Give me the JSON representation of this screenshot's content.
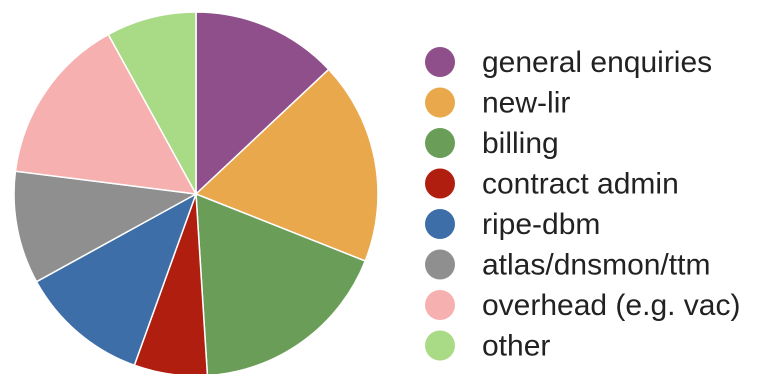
{
  "chart_data": {
    "type": "pie",
    "start": "12 o'clock",
    "direction": "clockwise",
    "legend_position": "right",
    "slices": [
      {
        "label": "general enquiries",
        "value": 13,
        "color": "#8E4F8A"
      },
      {
        "label": "new-lir",
        "value": 18,
        "color": "#E9A84C"
      },
      {
        "label": "billing",
        "value": 18,
        "color": "#6A9E58"
      },
      {
        "label": "contract admin",
        "value": 6.5,
        "color": "#B01E10"
      },
      {
        "label": "ripe-dbm",
        "value": 11.5,
        "color": "#3E6EA7"
      },
      {
        "label": "atlas/dnsmon/ttm",
        "value": 10,
        "color": "#8F8F8F"
      },
      {
        "label": "overhead (e.g. vac)",
        "value": 15,
        "color": "#F7B0B0"
      },
      {
        "label": "other",
        "value": 8,
        "color": "#A9DA86"
      }
    ]
  }
}
